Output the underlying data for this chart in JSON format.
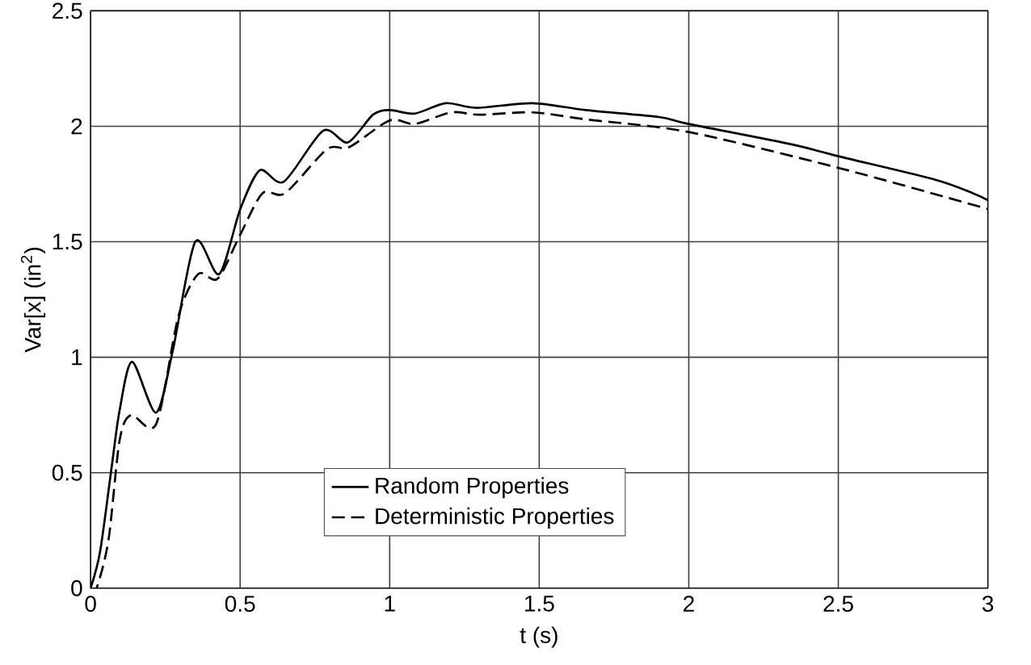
{
  "chart_data": {
    "type": "line",
    "xlabel": "t (s)",
    "ylabel": "Var[x] (in$^{2}$)",
    "xlim": [
      0,
      3
    ],
    "ylim": [
      0,
      2.5
    ],
    "xticks": [
      0,
      0.5,
      1,
      1.5,
      2,
      2.5,
      3
    ],
    "yticks": [
      0,
      0.5,
      1,
      1.5,
      2,
      2.5
    ],
    "grid": true,
    "legend": "bottom",
    "marker": "none",
    "series": [
      {
        "name": "Random Properties",
        "color": "#000000",
        "line_style": "solid",
        "x": [
          0,
          0.032,
          0.07,
          0.097,
          0.139,
          0.219,
          0.275,
          0.35,
          0.43,
          0.5,
          0.566,
          0.646,
          0.777,
          0.86,
          0.944,
          1.0,
          1.084,
          1.187,
          1.29,
          1.478,
          1.655,
          1.9,
          2.0,
          2.35,
          2.5,
          2.82,
          2.95,
          3.0
        ],
        "values": [
          0,
          0.16,
          0.52,
          0.77,
          0.98,
          0.76,
          1.03,
          1.5,
          1.36,
          1.64,
          1.81,
          1.76,
          1.98,
          1.93,
          2.05,
          2.07,
          2.055,
          2.1,
          2.08,
          2.1,
          2.07,
          2.04,
          2.01,
          1.92,
          1.87,
          1.77,
          1.71,
          1.68
        ]
      },
      {
        "name": "Deterministic Properties",
        "color": "#000000",
        "line_style": "dashed",
        "x": [
          0,
          0.02,
          0.06,
          0.097,
          0.135,
          0.219,
          0.294,
          0.36,
          0.425,
          0.5,
          0.575,
          0.65,
          0.79,
          0.865,
          1.0,
          1.084,
          1.206,
          1.3,
          1.478,
          1.655,
          2.0,
          2.5,
          2.95,
          3.0
        ],
        "values": [
          0,
          0,
          0.21,
          0.64,
          0.75,
          0.71,
          1.18,
          1.36,
          1.34,
          1.53,
          1.71,
          1.71,
          1.9,
          1.91,
          2.025,
          2.01,
          2.06,
          2.05,
          2.06,
          2.03,
          1.975,
          1.82,
          1.66,
          1.64
        ]
      }
    ]
  }
}
